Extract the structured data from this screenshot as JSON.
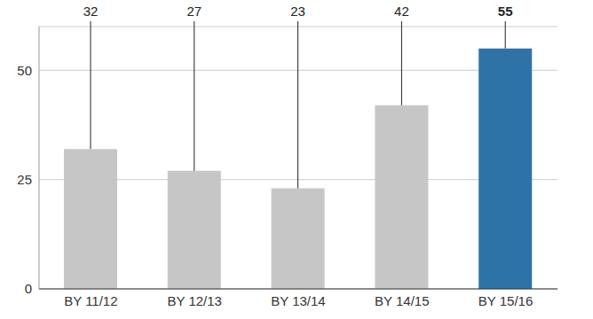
{
  "chart_data": {
    "type": "bar",
    "categories": [
      "BY 11/12",
      "BY 12/13",
      "BY 13/14",
      "BY 14/15",
      "BY 15/16"
    ],
    "values": [
      32,
      27,
      23,
      42,
      55
    ],
    "colors": [
      "#c6c6c6",
      "#c6c6c6",
      "#c6c6c6",
      "#c6c6c6",
      "#2e73a8"
    ],
    "ylim": [
      0,
      60
    ],
    "yticks": [
      0,
      25,
      50
    ],
    "grid": true,
    "data_labels": true
  }
}
